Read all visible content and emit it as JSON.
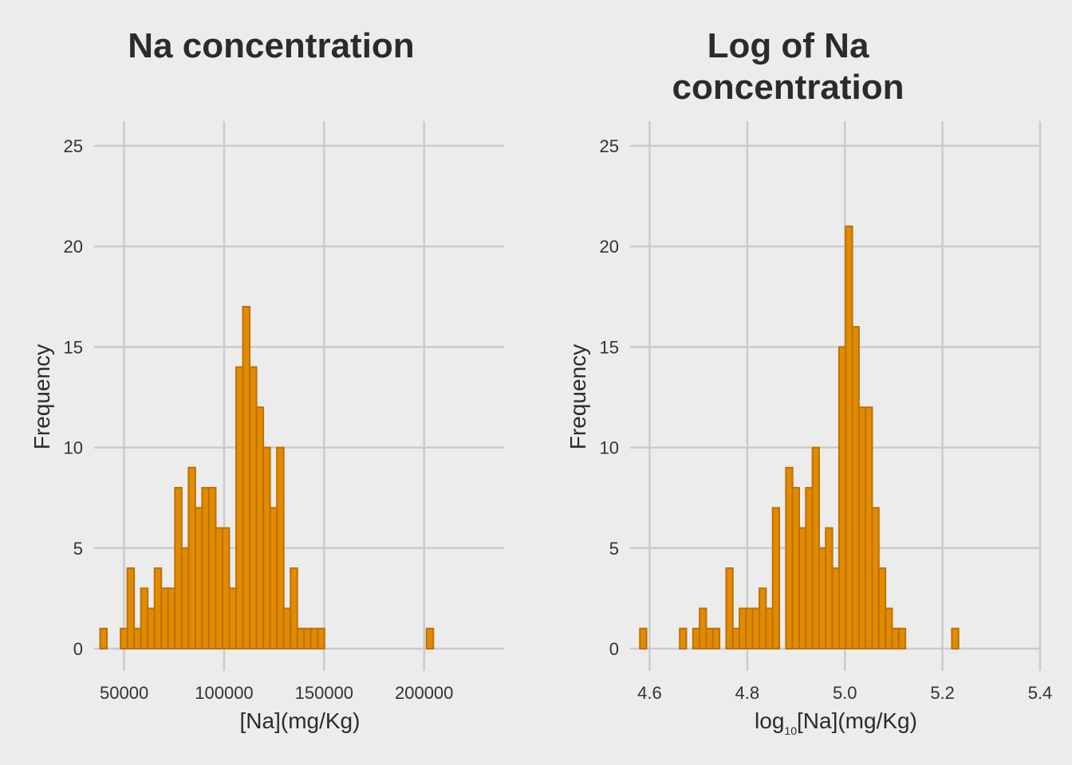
{
  "colors": {
    "background": "#ececec",
    "bar_fill": "#e08b00",
    "bar_stroke": "#c07000",
    "grid": "#cbcbcb",
    "text": "#2b2b2b"
  },
  "chart_data": [
    {
      "type": "bar",
      "histogram": true,
      "title": "Na concentration",
      "xlabel": "[Na](mg/Kg)",
      "ylabel": "Frequency",
      "xlim": [
        35000,
        240000
      ],
      "ylim": [
        0,
        25
      ],
      "grid": true,
      "xticks": [
        50000,
        100000,
        150000,
        200000
      ],
      "xtick_labels": [
        "50000",
        "100000",
        "150000",
        "200000"
      ],
      "yticks": [
        0,
        5,
        10,
        15,
        20,
        25
      ],
      "ytick_labels": [
        "0",
        "5",
        "10",
        "15",
        "20",
        "25"
      ],
      "bin_start": 38000,
      "bin_width": 3400,
      "values": [
        1,
        0,
        0,
        1,
        4,
        1,
        3,
        2,
        4,
        3,
        3,
        8,
        5,
        9,
        7,
        8,
        8,
        6,
        6,
        3,
        14,
        17,
        14,
        12,
        10,
        7,
        10,
        2,
        4,
        1,
        1,
        1,
        1,
        0,
        0,
        0,
        0,
        0,
        0,
        0,
        0,
        0,
        0,
        0,
        0,
        0,
        0,
        0,
        1
      ]
    },
    {
      "type": "bar",
      "histogram": true,
      "title": [
        "Log of Na",
        "concentration"
      ],
      "xlabel": {
        "prefix": "log",
        "subscript": "10",
        "suffix": "[Na](mg/Kg)"
      },
      "ylabel": "Frequency",
      "xlim": [
        4.56,
        5.4
      ],
      "ylim": [
        0,
        25
      ],
      "grid": true,
      "xticks": [
        4.6,
        4.8,
        5.0,
        5.2,
        5.4
      ],
      "xtick_labels": [
        "4.6",
        "4.8",
        "5.0",
        "5.2",
        "5.4"
      ],
      "yticks": [
        0,
        5,
        10,
        15,
        20,
        25
      ],
      "ytick_labels": [
        "0",
        "5",
        "10",
        "15",
        "20",
        "25"
      ],
      "bin_start": 4.58,
      "bin_width": 0.0136,
      "values": [
        1,
        0,
        0,
        0,
        0,
        0,
        1,
        0,
        1,
        2,
        1,
        1,
        0,
        4,
        1,
        2,
        2,
        2,
        3,
        2,
        7,
        0,
        9,
        8,
        6,
        8,
        10,
        5,
        6,
        4,
        15,
        21,
        16,
        12,
        12,
        7,
        4,
        2,
        1,
        1,
        0,
        0,
        0,
        0,
        0,
        0,
        0,
        1
      ]
    }
  ]
}
